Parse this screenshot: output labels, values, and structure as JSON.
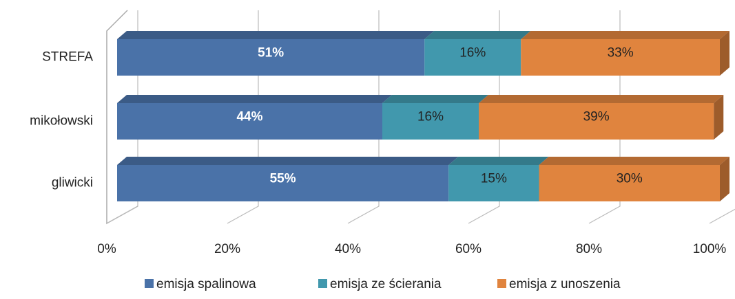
{
  "chart_data": {
    "type": "bar3d_stacked_horizontal",
    "categories": [
      "STREFA",
      "mikołowski",
      "gliwicki"
    ],
    "series": [
      {
        "name": "emisja spalinowa",
        "color": "#4a72a8",
        "values": [
          51,
          44,
          55
        ],
        "value_labels": [
          "51%",
          "44%",
          "55%"
        ]
      },
      {
        "name": "emisja ze ścierania",
        "color": "#4198ad",
        "values": [
          16,
          16,
          15
        ],
        "value_labels": [
          "16%",
          "16%",
          "15%"
        ]
      },
      {
        "name": "emisja z unoszenia",
        "color": "#e0843e",
        "values": [
          33,
          39,
          30
        ],
        "value_labels": [
          "33%",
          "39%",
          "30%"
        ]
      }
    ],
    "xlim": [
      0,
      100
    ],
    "xticks": [
      {
        "value": 0,
        "label": "0%"
      },
      {
        "value": 20,
        "label": "20%"
      },
      {
        "value": 40,
        "label": "40%"
      },
      {
        "value": 60,
        "label": "60%"
      },
      {
        "value": 80,
        "label": "80%"
      },
      {
        "value": 100,
        "label": "100%"
      }
    ],
    "grid": true,
    "legend": "bottom"
  }
}
